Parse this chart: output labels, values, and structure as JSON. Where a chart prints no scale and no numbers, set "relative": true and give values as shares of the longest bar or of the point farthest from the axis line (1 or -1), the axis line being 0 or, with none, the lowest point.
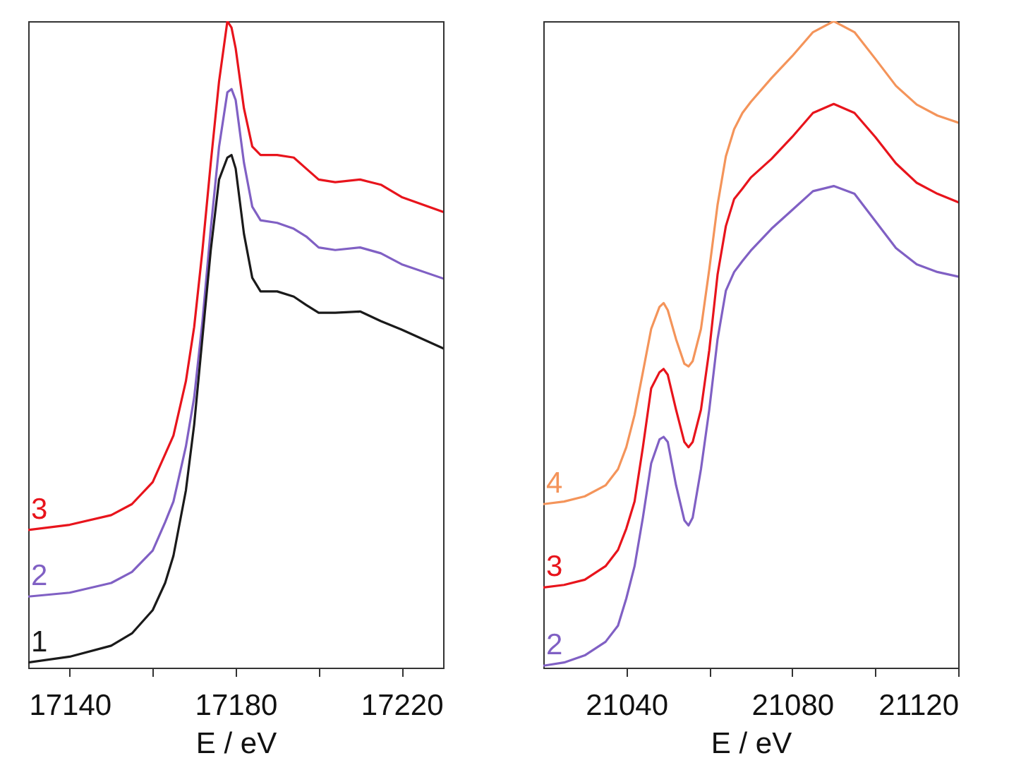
{
  "chart_data": [
    {
      "type": "line",
      "xlabel": "E / eV",
      "relative": true,
      "xlim": [
        17130,
        17230
      ],
      "xticks": [
        17140,
        {
          "value": 17160,
          "label": null
        },
        17180,
        {
          "value": 17200,
          "label": null
        },
        17220
      ],
      "x": [
        17130,
        17140,
        17150,
        17155,
        17160,
        17163,
        17165,
        17168,
        17170,
        17172,
        17174,
        17176,
        17178,
        17179,
        17180,
        17182,
        17184,
        17186,
        17190,
        17194,
        17197,
        17200,
        17204,
        17210,
        17215,
        17220,
        17230
      ],
      "series": [
        {
          "name": "3",
          "color": "#e8141c",
          "values": [
            0.213,
            0.221,
            0.236,
            0.253,
            0.287,
            0.33,
            0.359,
            0.443,
            0.527,
            0.646,
            0.781,
            0.907,
            1.0,
            0.99,
            0.958,
            0.865,
            0.806,
            0.793,
            0.793,
            0.789,
            0.772,
            0.755,
            0.751,
            0.755,
            0.747,
            0.728,
            0.705
          ]
        },
        {
          "name": "2",
          "color": "#8060c4",
          "values": [
            0.11,
            0.116,
            0.131,
            0.148,
            0.181,
            0.225,
            0.257,
            0.342,
            0.418,
            0.536,
            0.679,
            0.806,
            0.89,
            0.895,
            0.878,
            0.781,
            0.713,
            0.692,
            0.688,
            0.679,
            0.667,
            0.65,
            0.646,
            0.65,
            0.641,
            0.624,
            0.602
          ]
        },
        {
          "name": "1",
          "color": "#1a1a1a",
          "values": [
            0.008,
            0.017,
            0.034,
            0.053,
            0.089,
            0.131,
            0.173,
            0.274,
            0.376,
            0.511,
            0.646,
            0.755,
            0.789,
            0.793,
            0.772,
            0.671,
            0.603,
            0.582,
            0.582,
            0.574,
            0.561,
            0.549,
            0.549,
            0.551,
            0.536,
            0.523,
            0.494
          ]
        }
      ]
    },
    {
      "type": "line",
      "xlabel": "E / eV",
      "relative": true,
      "xlim": [
        21020,
        21120
      ],
      "xticks": [
        21040,
        {
          "value": 21060,
          "label": null
        },
        21080,
        {
          "value": 21100,
          "label": null
        },
        21120
      ],
      "x": [
        21020,
        21025,
        21030,
        21035,
        21038,
        21040,
        21042,
        21044,
        21046,
        21048,
        21049,
        21050,
        21052,
        21054,
        21055,
        21056,
        21058,
        21060,
        21062,
        21064,
        21066,
        21068,
        21070,
        21075,
        21080,
        21085,
        21090,
        21095,
        21100,
        21105,
        21110,
        21115,
        21120
      ],
      "series": [
        {
          "name": "4",
          "color": "#f4945a",
          "values": [
            0.253,
            0.257,
            0.265,
            0.282,
            0.307,
            0.341,
            0.391,
            0.457,
            0.524,
            0.558,
            0.564,
            0.553,
            0.508,
            0.47,
            0.466,
            0.474,
            0.524,
            0.616,
            0.716,
            0.791,
            0.833,
            0.858,
            0.875,
            0.912,
            0.946,
            0.983,
            1.0,
            0.983,
            0.942,
            0.9,
            0.871,
            0.854,
            0.843
          ]
        },
        {
          "name": "3",
          "color": "#e8141c",
          "values": [
            0.124,
            0.128,
            0.136,
            0.157,
            0.182,
            0.215,
            0.257,
            0.341,
            0.432,
            0.457,
            0.462,
            0.453,
            0.399,
            0.349,
            0.341,
            0.349,
            0.399,
            0.491,
            0.608,
            0.683,
            0.725,
            0.741,
            0.758,
            0.787,
            0.821,
            0.858,
            0.872,
            0.858,
            0.821,
            0.78,
            0.75,
            0.733,
            0.72
          ]
        },
        {
          "name": "2",
          "color": "#8060c4",
          "values": [
            0.003,
            0.008,
            0.019,
            0.04,
            0.065,
            0.107,
            0.157,
            0.232,
            0.316,
            0.353,
            0.357,
            0.349,
            0.282,
            0.228,
            0.22,
            0.232,
            0.307,
            0.399,
            0.508,
            0.583,
            0.612,
            0.629,
            0.645,
            0.679,
            0.708,
            0.737,
            0.745,
            0.733,
            0.691,
            0.649,
            0.624,
            0.612,
            0.605
          ]
        }
      ]
    }
  ]
}
